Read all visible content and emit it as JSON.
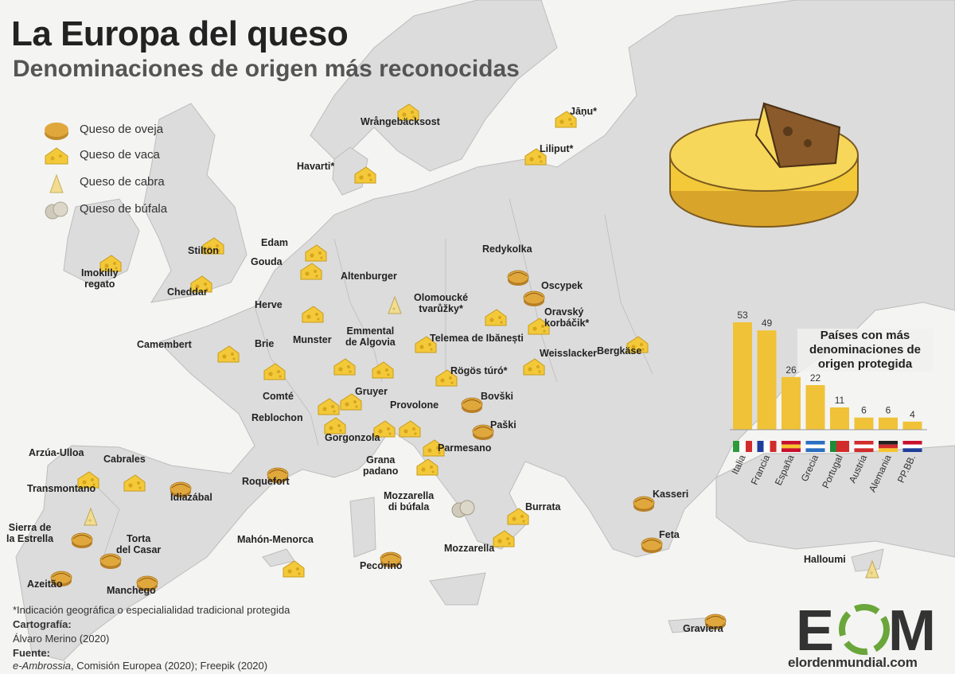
{
  "title": "La Europa del queso",
  "subtitle": "Denominaciones de origen más reconocidas",
  "legend": [
    {
      "label": "Queso de oveja",
      "type": "oveja"
    },
    {
      "label": "Queso de vaca",
      "type": "vaca"
    },
    {
      "label": "Queso de cabra",
      "type": "cabra"
    },
    {
      "label": "Queso de búfala",
      "type": "bufala"
    }
  ],
  "colors": {
    "vaca": "#f3c93a",
    "oveja": "#e0a83c",
    "cabra": "#f1dc8f",
    "bufala": "#cfcabb",
    "bar": "#f0c238",
    "land": "#dedede",
    "sea": "#f4f4f3"
  },
  "cheeses": [
    {
      "name": "Wrångebäcksost",
      "type": "vaca"
    },
    {
      "name": "Jāņu*",
      "type": "vaca"
    },
    {
      "name": "Liliput*",
      "type": "vaca"
    },
    {
      "name": "Havarti*",
      "type": "vaca"
    },
    {
      "name": "Stilton",
      "type": "vaca"
    },
    {
      "name": "Imokilly regato",
      "type": "vaca"
    },
    {
      "name": "Cheddar",
      "type": "vaca"
    },
    {
      "name": "Edam",
      "type": "vaca"
    },
    {
      "name": "Gouda",
      "type": "vaca"
    },
    {
      "name": "Herve",
      "type": "vaca"
    },
    {
      "name": "Altenburger",
      "type": "cabra"
    },
    {
      "name": "Redykolka",
      "type": "oveja"
    },
    {
      "name": "Oscypek",
      "type": "oveja"
    },
    {
      "name": "Olomoucké tvarůžky*",
      "type": "vaca"
    },
    {
      "name": "Oravský korbáčik*",
      "type": "vaca"
    },
    {
      "name": "Camembert",
      "type": "vaca"
    },
    {
      "name": "Brie",
      "type": "vaca"
    },
    {
      "name": "Munster",
      "type": "vaca"
    },
    {
      "name": "Emmental de Algovia",
      "type": "vaca"
    },
    {
      "name": "Weisslacker",
      "type": "vaca"
    },
    {
      "name": "Rögös túró*",
      "type": "vaca"
    },
    {
      "name": "Telemea de Ibănești",
      "type": "vaca"
    },
    {
      "name": "Bergkäse",
      "type": "vaca"
    },
    {
      "name": "Comté",
      "type": "vaca"
    },
    {
      "name": "Gruyer",
      "type": "vaca"
    },
    {
      "name": "Bovški",
      "type": "oveja"
    },
    {
      "name": "Provolone",
      "type": "vaca"
    },
    {
      "name": "Reblochon",
      "type": "vaca"
    },
    {
      "name": "Paški",
      "type": "oveja"
    },
    {
      "name": "Gorgonzola",
      "type": "vaca"
    },
    {
      "name": "Parmesano",
      "type": "vaca"
    },
    {
      "name": "Grana padano",
      "type": "vaca"
    },
    {
      "name": "Arzúa-Ulloa",
      "type": "vaca"
    },
    {
      "name": "Cabrales",
      "type": "vaca"
    },
    {
      "name": "Transmontano",
      "type": "cabra"
    },
    {
      "name": "Idiazábal",
      "type": "oveja"
    },
    {
      "name": "Roquefort",
      "type": "oveja"
    },
    {
      "name": "Mozzarella di búfala",
      "type": "bufala"
    },
    {
      "name": "Burrata",
      "type": "vaca"
    },
    {
      "name": "Kasseri",
      "type": "oveja"
    },
    {
      "name": "Sierra de la Estrella",
      "type": "oveja"
    },
    {
      "name": "Torta del Casar",
      "type": "oveja"
    },
    {
      "name": "Mahón-Menorca",
      "type": "vaca"
    },
    {
      "name": "Feta",
      "type": "oveja"
    },
    {
      "name": "Mozzarella",
      "type": "vaca"
    },
    {
      "name": "Azeitão",
      "type": "oveja"
    },
    {
      "name": "Manchego",
      "type": "oveja"
    },
    {
      "name": "Pecorino",
      "type": "oveja"
    },
    {
      "name": "Halloumi",
      "type": "cabra"
    },
    {
      "name": "Graviera",
      "type": "oveja"
    }
  ],
  "chart_data": {
    "type": "bar",
    "title": "Países con más denominaciones de origen protegida",
    "categories": [
      "Italia",
      "Francia",
      "España",
      "Grecia",
      "Portugal",
      "Austria",
      "Alemania",
      "PP.BB."
    ],
    "values": [
      53,
      49,
      26,
      22,
      11,
      6,
      6,
      4
    ],
    "ylim": [
      0,
      53
    ],
    "color": "#f0c238"
  },
  "footnotes": {
    "note": "*Indicación geográfica o especialialidad tradicional protegida",
    "carto_label": "Cartografía:",
    "carto_value": "Álvaro Merino (2020)",
    "source_label": "Fuente:",
    "source_italic": "e-Ambrossia",
    "source_rest": ", Comisión Europea (2020); Freepik (2020)"
  },
  "logo": {
    "mark": "EOM",
    "site": "elordenmundial.com"
  }
}
